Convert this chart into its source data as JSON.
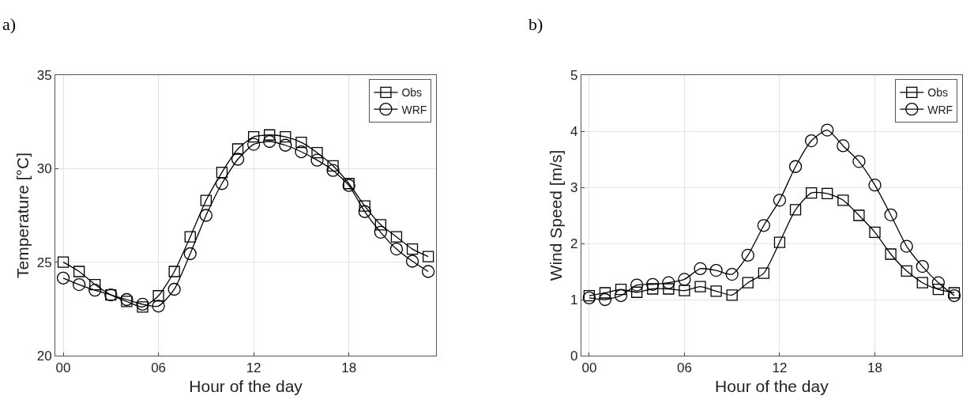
{
  "chart_data": [
    {
      "type": "line",
      "title": "a)",
      "xlabel": "Hour of the day",
      "ylabel": "Temperature [°C]",
      "x": [
        0,
        1,
        2,
        3,
        4,
        5,
        6,
        7,
        8,
        9,
        10,
        11,
        12,
        13,
        14,
        15,
        16,
        17,
        18,
        19,
        20,
        21,
        22,
        23
      ],
      "series": [
        {
          "name": "Obs",
          "color": "#000000",
          "marker": "square",
          "values": [
            25.0,
            24.5,
            23.8,
            23.25,
            22.9,
            22.6,
            23.2,
            24.5,
            26.35,
            28.3,
            29.8,
            31.05,
            31.7,
            31.8,
            31.7,
            31.4,
            30.85,
            30.15,
            29.2,
            28.0,
            27.0,
            26.35,
            25.7,
            25.3
          ]
        },
        {
          "name": "WRF",
          "color": "#000000",
          "marker": "circle",
          "values": [
            24.15,
            23.8,
            23.5,
            23.25,
            23.0,
            22.75,
            22.65,
            23.55,
            25.45,
            27.5,
            29.2,
            30.5,
            31.3,
            31.45,
            31.25,
            30.9,
            30.45,
            29.9,
            29.1,
            27.7,
            26.6,
            25.7,
            25.05,
            24.5
          ]
        }
      ],
      "xlim": [
        -0.5,
        23.5
      ],
      "xticks": [
        {
          "value": 0,
          "label": "00"
        },
        {
          "value": 6,
          "label": "06"
        },
        {
          "value": 12,
          "label": "12"
        },
        {
          "value": 18,
          "label": "18"
        }
      ],
      "ylim": [
        20,
        35
      ],
      "yticks": [
        20,
        25,
        30,
        35
      ],
      "grid": true,
      "legend": "top right",
      "line_style": "solid"
    },
    {
      "type": "line",
      "title": "b)",
      "xlabel": "Hour of the day",
      "ylabel": "Wind Speed [m/s]",
      "x": [
        0,
        1,
        2,
        3,
        4,
        5,
        6,
        7,
        8,
        9,
        10,
        11,
        12,
        13,
        14,
        15,
        16,
        17,
        18,
        19,
        20,
        21,
        22,
        23
      ],
      "series": [
        {
          "name": "Obs",
          "color": "#000000",
          "marker": "square",
          "values": [
            1.07,
            1.12,
            1.18,
            1.13,
            1.19,
            1.19,
            1.16,
            1.23,
            1.15,
            1.08,
            1.3,
            1.47,
            2.02,
            2.6,
            2.9,
            2.89,
            2.77,
            2.5,
            2.2,
            1.81,
            1.51,
            1.3,
            1.18,
            1.12
          ]
        },
        {
          "name": "WRF",
          "color": "#000000",
          "marker": "circle",
          "values": [
            1.03,
            1.0,
            1.07,
            1.26,
            1.27,
            1.3,
            1.36,
            1.55,
            1.52,
            1.45,
            1.79,
            2.32,
            2.77,
            3.37,
            3.83,
            4.02,
            3.74,
            3.46,
            3.04,
            2.51,
            1.95,
            1.59,
            1.3,
            1.07
          ]
        }
      ],
      "xlim": [
        -0.5,
        23.5
      ],
      "xticks": [
        {
          "value": 0,
          "label": "00"
        },
        {
          "value": 6,
          "label": "06"
        },
        {
          "value": 12,
          "label": "12"
        },
        {
          "value": 18,
          "label": "18"
        }
      ],
      "ylim": [
        0,
        5
      ],
      "yticks": [
        0,
        1,
        2,
        3,
        4,
        5
      ],
      "grid": true,
      "legend": "top right",
      "line_style": "solid"
    }
  ]
}
